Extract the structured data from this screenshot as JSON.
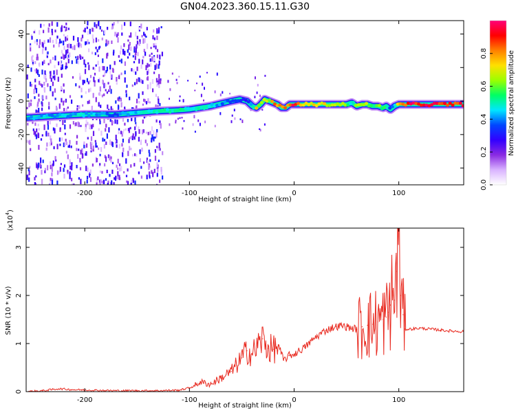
{
  "chart_data": [
    {
      "type": "heatmap",
      "title": "GN04.2023.360.15.11.G30",
      "xlabel": "Height of straight line (km)",
      "ylabel": "Frequency (Hz)",
      "xlim": [
        -256,
        162
      ],
      "ylim": [
        -50,
        48
      ],
      "xticks": [
        -200,
        -100,
        0,
        100
      ],
      "yticks": [
        -40,
        -20,
        0,
        20,
        40
      ],
      "grid": false,
      "ridge": {
        "x": [
          -256,
          -230,
          -200,
          -170,
          -150,
          -130,
          -110,
          -100,
          -90,
          -80,
          -70,
          -60,
          -52,
          -45,
          -40,
          -36,
          -32,
          -28,
          -24,
          -20,
          -16,
          -12,
          -8,
          -4,
          0,
          10,
          30,
          50,
          55,
          60,
          65,
          70,
          75,
          80,
          85,
          88,
          92,
          96,
          100,
          110,
          130,
          162
        ],
        "y": [
          -10,
          -9,
          -8,
          -8,
          -7,
          -6,
          -5.5,
          -5,
          -4,
          -3,
          -1.5,
          0,
          1,
          0,
          -3,
          -4,
          -2,
          1,
          0,
          -1,
          -2,
          -4,
          -4,
          -2,
          -2,
          -2,
          -2,
          -2,
          -1,
          -3,
          -2,
          -2,
          -3,
          -3,
          -4,
          -3,
          -5,
          -3,
          -2,
          -2,
          -2,
          -2
        ],
        "amplitude": [
          0.45,
          0.45,
          0.5,
          0.4,
          0.5,
          0.55,
          0.55,
          0.5,
          0.55,
          0.5,
          0.45,
          0.4,
          0.35,
          0.3,
          0.45,
          0.8,
          0.7,
          0.7,
          0.7,
          0.85,
          0.9,
          0.9,
          0.95,
          0.95,
          1.0,
          0.85,
          0.75,
          0.7,
          0.5,
          0.8,
          0.6,
          0.75,
          0.55,
          0.7,
          0.6,
          0.6,
          0.35,
          0.5,
          0.9,
          1.0,
          1.0,
          1.0
        ]
      },
      "colorbar": {
        "label": "Normalized spectral amplitude",
        "range": [
          0.0,
          1.0
        ],
        "ticks": [
          "0.0",
          "0.2",
          "0.4",
          "0.6",
          "0.8"
        ],
        "tick_values": [
          0.0,
          0.2,
          0.4,
          0.6,
          0.8
        ],
        "colors": [
          "#ffffff",
          "#d9b3ff",
          "#8a2be2",
          "#3200ff",
          "#0046ff",
          "#00e6ff",
          "#00ff64",
          "#9bff00",
          "#ffe000",
          "#ff8000",
          "#ff0000",
          "#ff0078"
        ]
      }
    },
    {
      "type": "line",
      "xlabel": "Height of straight line (km)",
      "ylabel": "SNR (10 * v/v)",
      "y_multiplier": "(x10",
      "y_multiplier_exp": "4",
      "y_multiplier_close": ")",
      "xlim": [
        -256,
        162
      ],
      "ylim": [
        0,
        3.4
      ],
      "xticks": [
        -200,
        -100,
        0,
        100
      ],
      "yticks": [
        0,
        1,
        2,
        3
      ],
      "grid": false,
      "series": [
        {
          "color": "#e8281e",
          "x": [
            -256,
            -240,
            -225,
            -210,
            -190,
            -170,
            -150,
            -130,
            -110,
            -100,
            -95,
            -90,
            -85,
            -80,
            -75,
            -70,
            -65,
            -60,
            -55,
            -50,
            -45,
            -40,
            -35,
            -30,
            -25,
            -20,
            -15,
            -10,
            -5,
            0,
            5,
            10,
            15,
            20,
            25,
            30,
            35,
            40,
            45,
            50,
            55,
            60,
            65,
            70,
            75,
            80,
            85,
            88,
            90,
            92,
            94,
            96,
            98,
            100,
            102,
            104,
            106,
            110,
            120,
            130,
            140,
            150,
            162
          ],
          "y": [
            0.0,
            0.02,
            0.06,
            0.04,
            0.03,
            0.02,
            0.02,
            0.02,
            0.03,
            0.08,
            0.12,
            0.2,
            0.18,
            0.15,
            0.22,
            0.28,
            0.35,
            0.42,
            0.55,
            0.7,
            0.85,
            0.78,
            0.95,
            1.1,
            0.9,
            0.88,
            0.95,
            0.65,
            0.75,
            0.78,
            0.85,
            0.92,
            1.02,
            1.12,
            1.2,
            1.27,
            1.32,
            1.35,
            1.37,
            1.35,
            1.32,
            1.3,
            1.35,
            1.38,
            1.4,
            1.45,
            1.5,
            1.55,
            1.65,
            1.8,
            2.0,
            1.9,
            2.5,
            3.4,
            2.0,
            1.6,
            1.3,
            1.3,
            1.32,
            1.3,
            1.28,
            1.26,
            1.25
          ]
        }
      ]
    }
  ]
}
